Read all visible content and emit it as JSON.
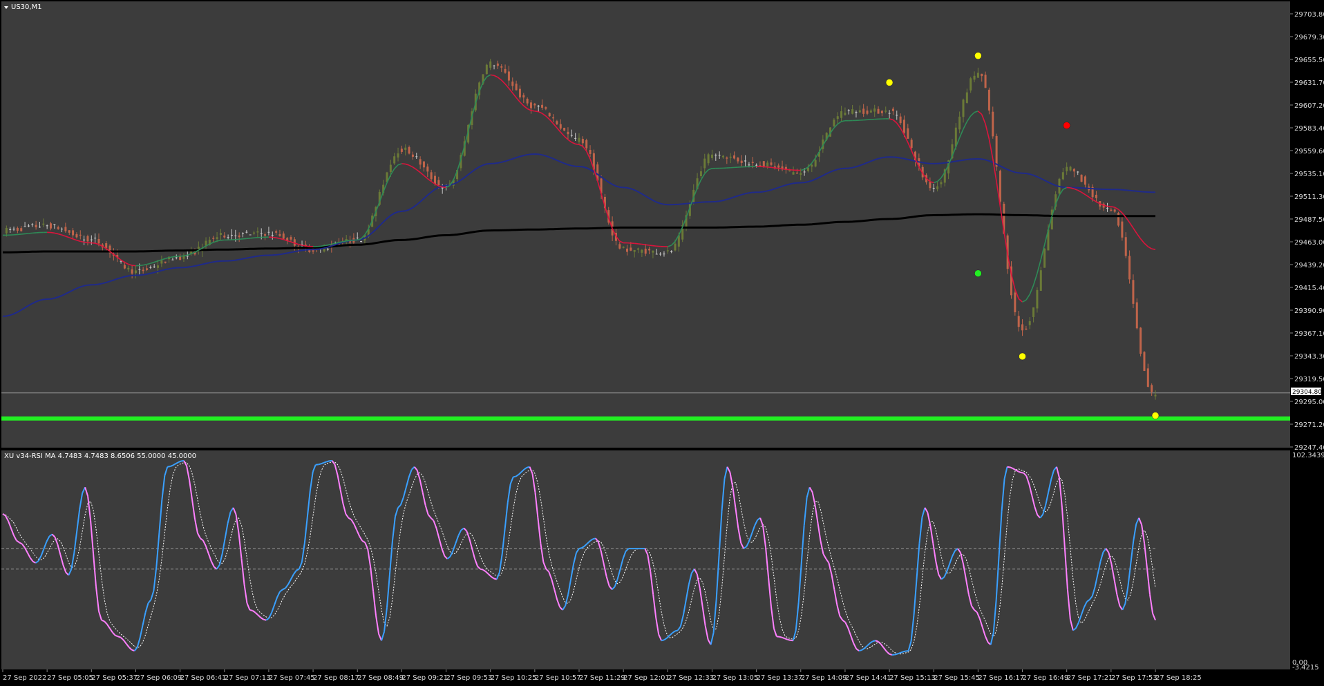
{
  "colors": {
    "background": "#3c3c3c",
    "axis_text": "#d8d8d8",
    "bull_candle": "#6b7a37",
    "bear_candle": "#c0644a",
    "neutral_candle": "#c8c8c8",
    "ema_fast_up": "#2e8b57",
    "ema_fast_down": "#dc143c",
    "ma_mid": "#1f2a8a",
    "ma_slow": "#000000",
    "support_line": "#22ee22",
    "rsi_up": "#3aa0ff",
    "rsi_down": "#ff80ff",
    "rsi_signal": "#ffffff"
  },
  "main_panel": {
    "title": "US30,M1",
    "current_price_label": "29304.80",
    "price_ticks": [
      "29703.80",
      "29679.30",
      "29655.50",
      "29631.70",
      "29607.20",
      "29583.40",
      "29559.60",
      "29535.10",
      "29511.30",
      "29487.50",
      "29463.00",
      "29439.20",
      "29415.40",
      "29390.90",
      "29367.10",
      "29343.30",
      "29319.50",
      "29295.00",
      "29271.20",
      "29247.40"
    ]
  },
  "rsi_panel": {
    "title": "XU v34-RSI MA 4.7483 4.7483 8.6506 55.0000 45.0000",
    "top_label": "102.3439",
    "bottom_label_a": "0.00",
    "bottom_label_b": "-3.4215"
  },
  "time_axis": {
    "labels": [
      "27 Sep 2022",
      "27 Sep 05:05",
      "27 Sep 05:37",
      "27 Sep 06:09",
      "27 Sep 06:41",
      "27 Sep 07:13",
      "27 Sep 07:45",
      "27 Sep 08:17",
      "27 Sep 08:49",
      "27 Sep 09:21",
      "27 Sep 09:53",
      "27 Sep 10:25",
      "27 Sep 10:57",
      "27 Sep 11:29",
      "27 Sep 12:01",
      "27 Sep 12:33",
      "27 Sep 13:05",
      "27 Sep 13:37",
      "27 Sep 14:09",
      "27 Sep 14:41",
      "27 Sep 15:13",
      "27 Sep 15:45",
      "27 Sep 16:17",
      "27 Sep 16:49",
      "27 Sep 17:21",
      "27 Sep 17:53",
      "27 Sep 18:25"
    ]
  },
  "chart_data": [
    {
      "type": "line",
      "title": "US30,M1",
      "x": [
        "27 Sep 2022",
        "27 Sep 05:05",
        "27 Sep 05:37",
        "27 Sep 06:09",
        "27 Sep 06:41",
        "27 Sep 07:13",
        "27 Sep 07:45",
        "27 Sep 08:17",
        "27 Sep 08:49",
        "27 Sep 09:21",
        "27 Sep 09:53",
        "27 Sep 10:25",
        "27 Sep 10:57",
        "27 Sep 11:29",
        "27 Sep 12:01",
        "27 Sep 12:33",
        "27 Sep 13:05",
        "27 Sep 13:37",
        "27 Sep 14:09",
        "27 Sep 14:41",
        "27 Sep 15:13",
        "27 Sep 15:45",
        "27 Sep 16:17",
        "27 Sep 16:49",
        "27 Sep 17:21",
        "27 Sep 17:53",
        "27 Sep 18:25"
      ],
      "ylim": [
        29247.4,
        29715
      ],
      "grid": false,
      "series": [
        {
          "values": [
            29475,
            29480,
            29465,
            29432,
            29447,
            29470,
            29472,
            29455,
            29465,
            29560,
            29520,
            29650,
            29605,
            29570,
            29455,
            29452,
            29555,
            29545,
            29535,
            29600,
            29600,
            29520,
            29640,
            29370,
            29540,
            29495,
            29300
          ]
        },
        {
          "values": [
            29470,
            29473,
            29462,
            29438,
            29448,
            29465,
            29468,
            29458,
            29465,
            29545,
            29520,
            29638,
            29600,
            29565,
            29462,
            29458,
            29540,
            29542,
            29538,
            29590,
            29592,
            29525,
            29600,
            29400,
            29520,
            29500,
            29455
          ]
        },
        {
          "values": [
            29385,
            29403,
            29418,
            29428,
            29436,
            29443,
            29449,
            29455,
            29465,
            29495,
            29522,
            29545,
            29555,
            29542,
            29520,
            29502,
            29505,
            29515,
            29525,
            29540,
            29552,
            29545,
            29550,
            29535,
            29520,
            29518,
            29515
          ]
        },
        {
          "values": [
            29452,
            29453,
            29453,
            29453,
            29454,
            29455,
            29456,
            29457,
            29460,
            29465,
            29470,
            29475,
            29476,
            29477,
            29478,
            29478,
            29478,
            29479,
            29481,
            29484,
            29487,
            29491,
            29492,
            29491,
            29490,
            29490,
            29490
          ]
        }
      ],
      "levels": [
        {
          "value": 29304.8
        },
        {
          "value": 29278
        }
      ],
      "markers": [
        {
          "x": "27 Sep 15:13",
          "y": 29630,
          "color": "#ffff00"
        },
        {
          "x": "27 Sep 16:17",
          "y": 29658,
          "color": "#ffff00"
        },
        {
          "x": "27 Sep 16:17",
          "y": 29430,
          "color": "#22ee22"
        },
        {
          "x": "27 Sep 16:49",
          "y": 29343,
          "color": "#ffff00"
        },
        {
          "x": "27 Sep 17:21",
          "y": 29585,
          "color": "#ff0000"
        },
        {
          "x": "27 Sep 18:25",
          "y": 29281,
          "color": "#ffff00"
        }
      ]
    },
    {
      "type": "line",
      "title": "XU v34-RSI MA 4.7483 4.7483 8.6506 55.0000 45.0000",
      "ylim": [
        -3.4215,
        102.3439
      ],
      "levels": [
        55,
        45
      ],
      "series": [
        {
          "values": [
            72,
            58,
            48,
            62,
            42,
            85,
            20,
            12,
            5,
            30,
            95,
            98,
            60,
            45,
            75,
            25,
            20,
            35,
            45,
            96,
            98,
            70,
            58,
            10,
            75,
            95,
            70,
            50,
            65,
            45,
            40,
            90,
            95,
            45,
            25,
            55,
            60,
            35,
            55,
            55,
            10,
            15,
            45,
            8,
            95,
            55,
            70,
            12,
            10,
            85,
            50,
            20,
            5,
            10,
            3,
            5,
            75,
            40,
            55,
            25,
            8,
            95,
            92,
            70,
            95,
            15,
            30,
            55,
            25,
            70,
            20
          ]
        }
      ]
    }
  ]
}
